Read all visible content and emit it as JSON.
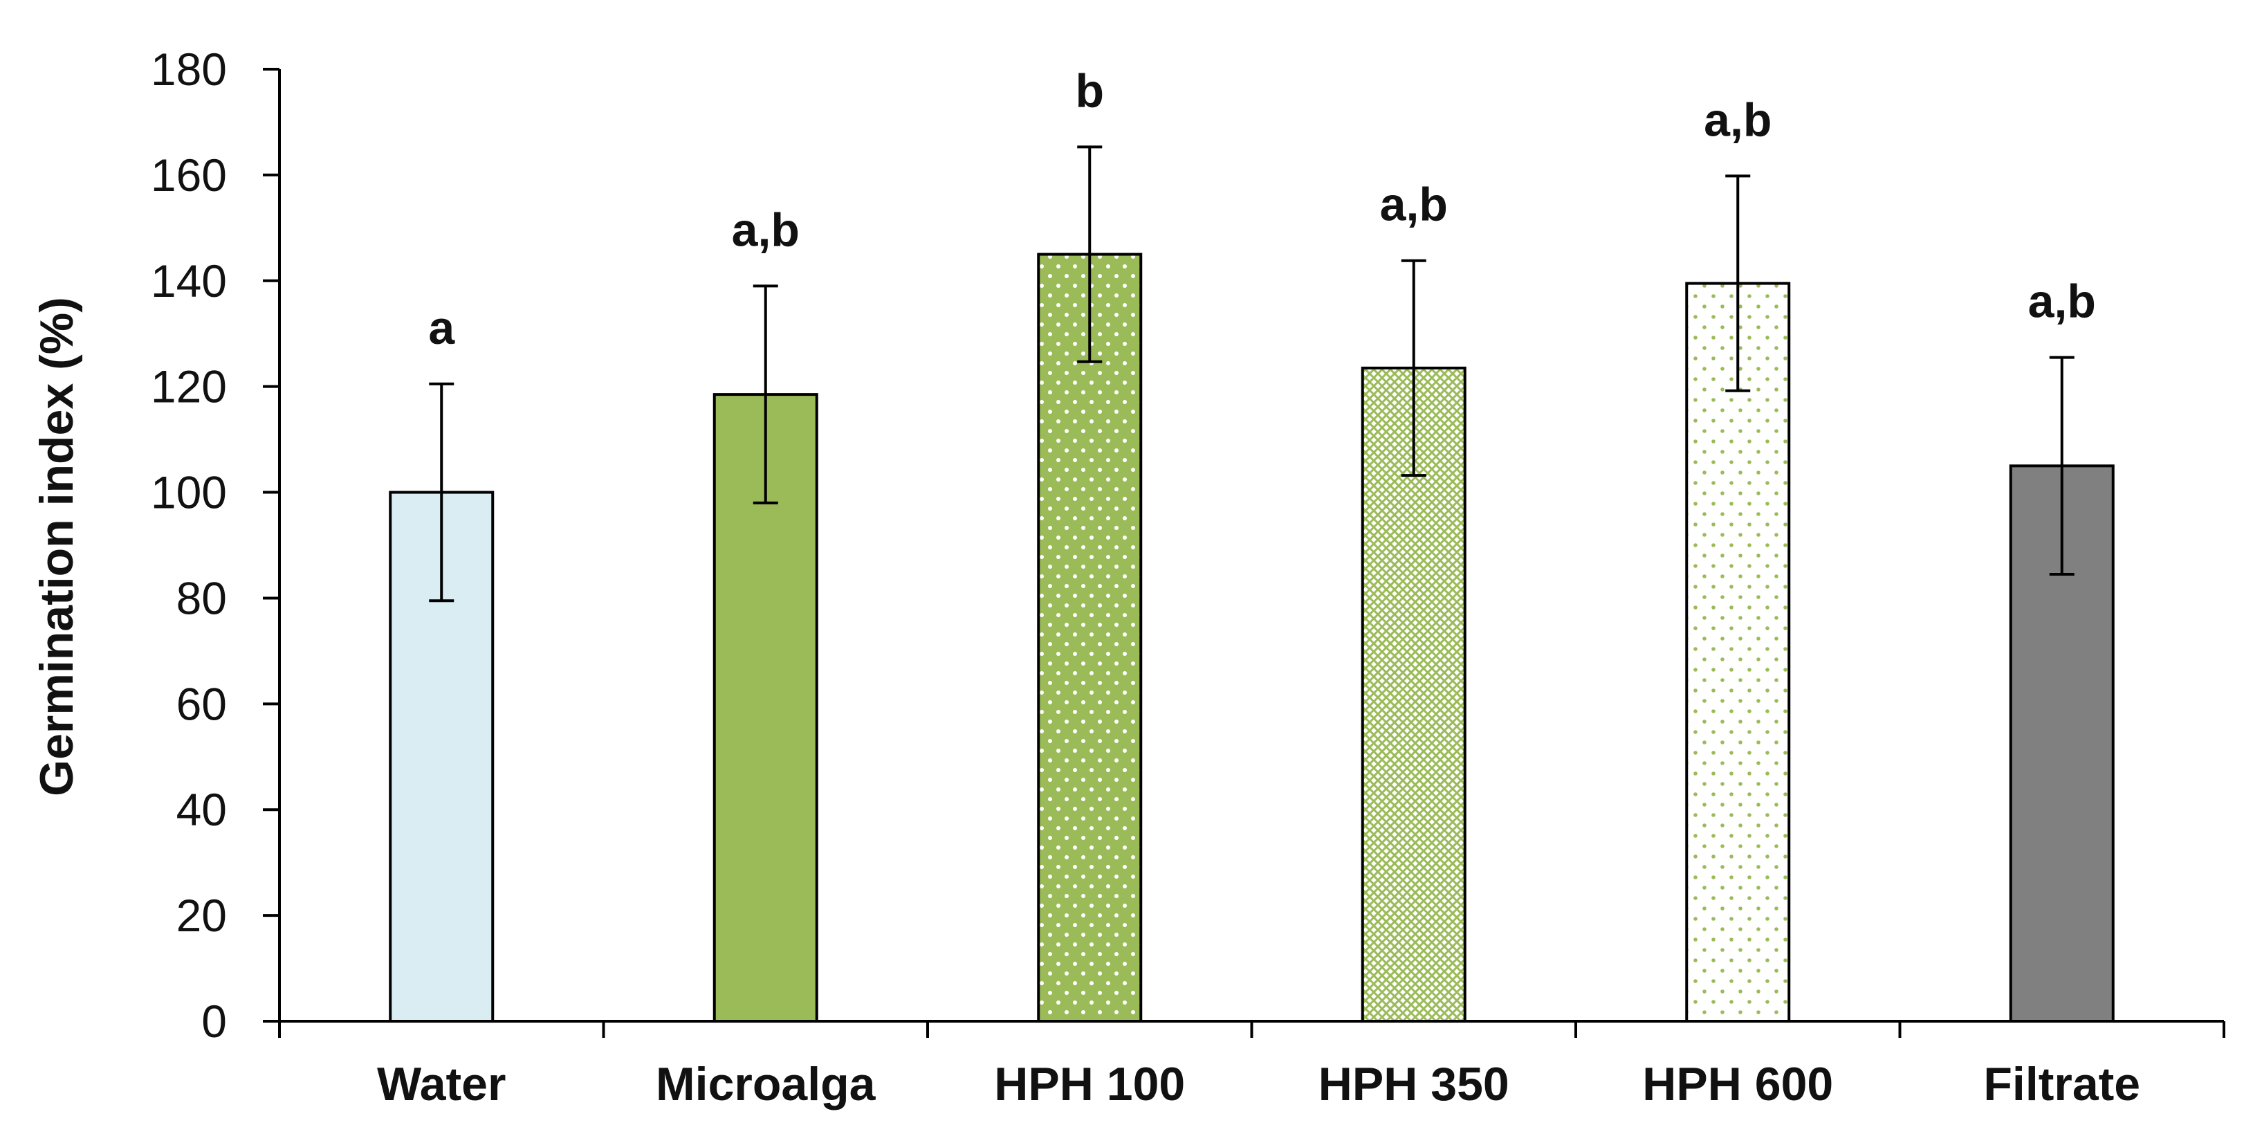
{
  "chart_data": {
    "type": "bar",
    "title": "",
    "xlabel": "",
    "ylabel": "Germination index (%)",
    "ylim": [
      0,
      180
    ],
    "yticks": [
      0,
      20,
      40,
      60,
      80,
      100,
      120,
      140,
      160,
      180
    ],
    "grid": false,
    "legend": "none",
    "categories": [
      "Water",
      "Microalga",
      "HPH 100",
      "HPH 350",
      "HPH 600",
      "Filtrate"
    ],
    "values": [
      100,
      118.5,
      145,
      123.5,
      139.5,
      105
    ],
    "errors": [
      20.5,
      20.5,
      20.3,
      20.3,
      20.3,
      20.5
    ],
    "significance": [
      "a",
      "a,b",
      "b",
      "a,b",
      "a,b",
      "a,b"
    ],
    "bar_styles": [
      {
        "fill": "#daedf3",
        "pattern": "solid"
      },
      {
        "fill": "#9bbb59",
        "pattern": "solid"
      },
      {
        "fill": "#9bbb59",
        "pattern": "white-dots-on-green"
      },
      {
        "fill": "#ffffff",
        "pattern": "green-diamond-lattice"
      },
      {
        "fill": "#ffffff",
        "pattern": "sparse-green-dots"
      },
      {
        "fill": "#808080",
        "pattern": "solid"
      }
    ],
    "axis_color": "#000000"
  }
}
